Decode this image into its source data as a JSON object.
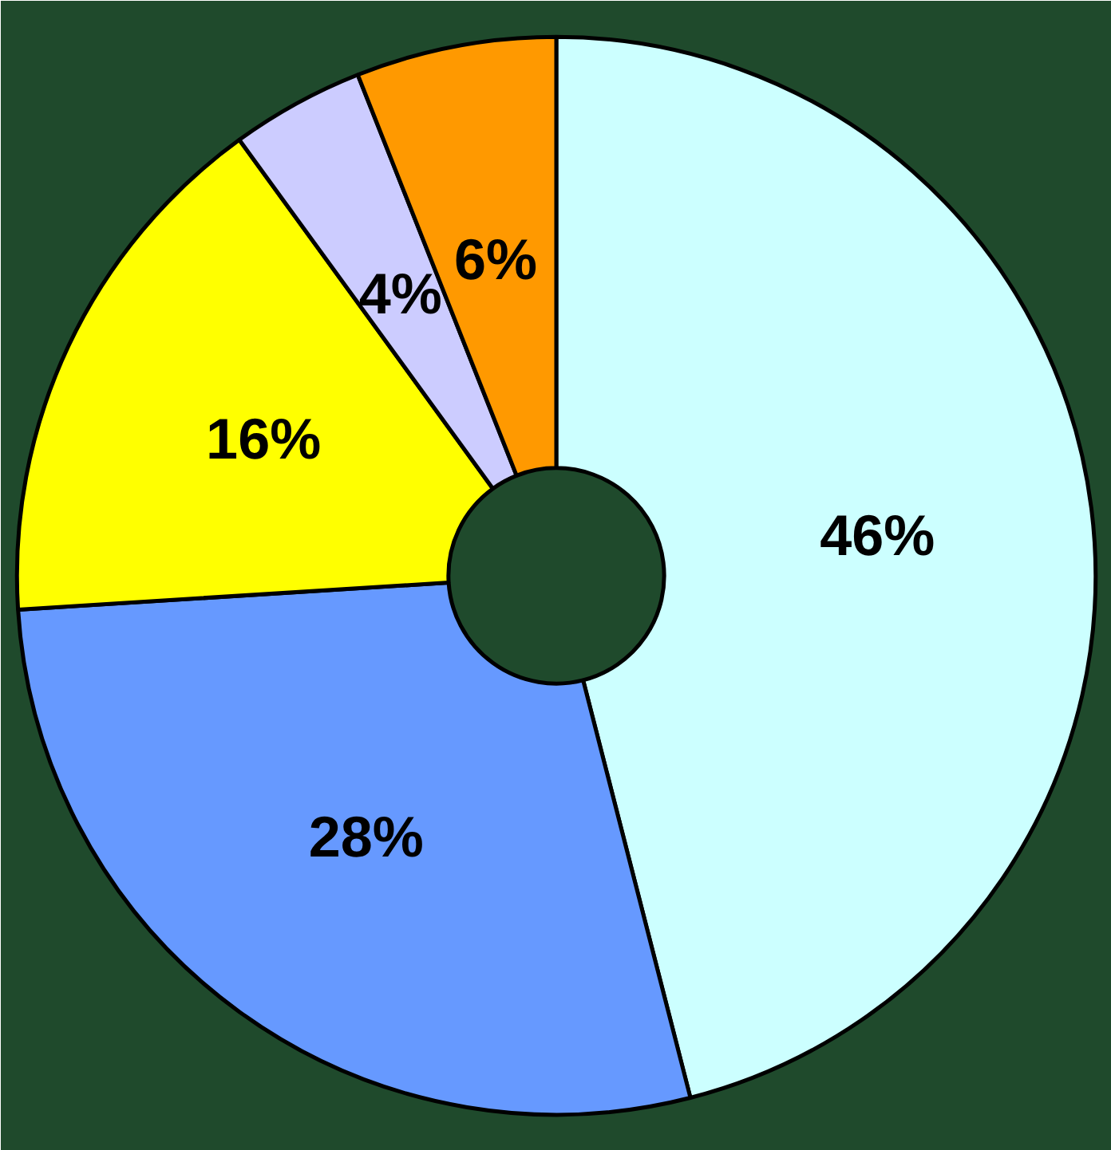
{
  "chart_data": {
    "type": "donut",
    "categories": [
      null,
      null,
      null,
      null,
      null
    ],
    "values": [
      46,
      28,
      16,
      4,
      6
    ],
    "colors": [
      "#ccffff",
      "#6699ff",
      "#ffff00",
      "#ccccff",
      "#ff9900"
    ],
    "value_labels": [
      "46%",
      "28%",
      "16%",
      "4%",
      "6%"
    ]
  }
}
